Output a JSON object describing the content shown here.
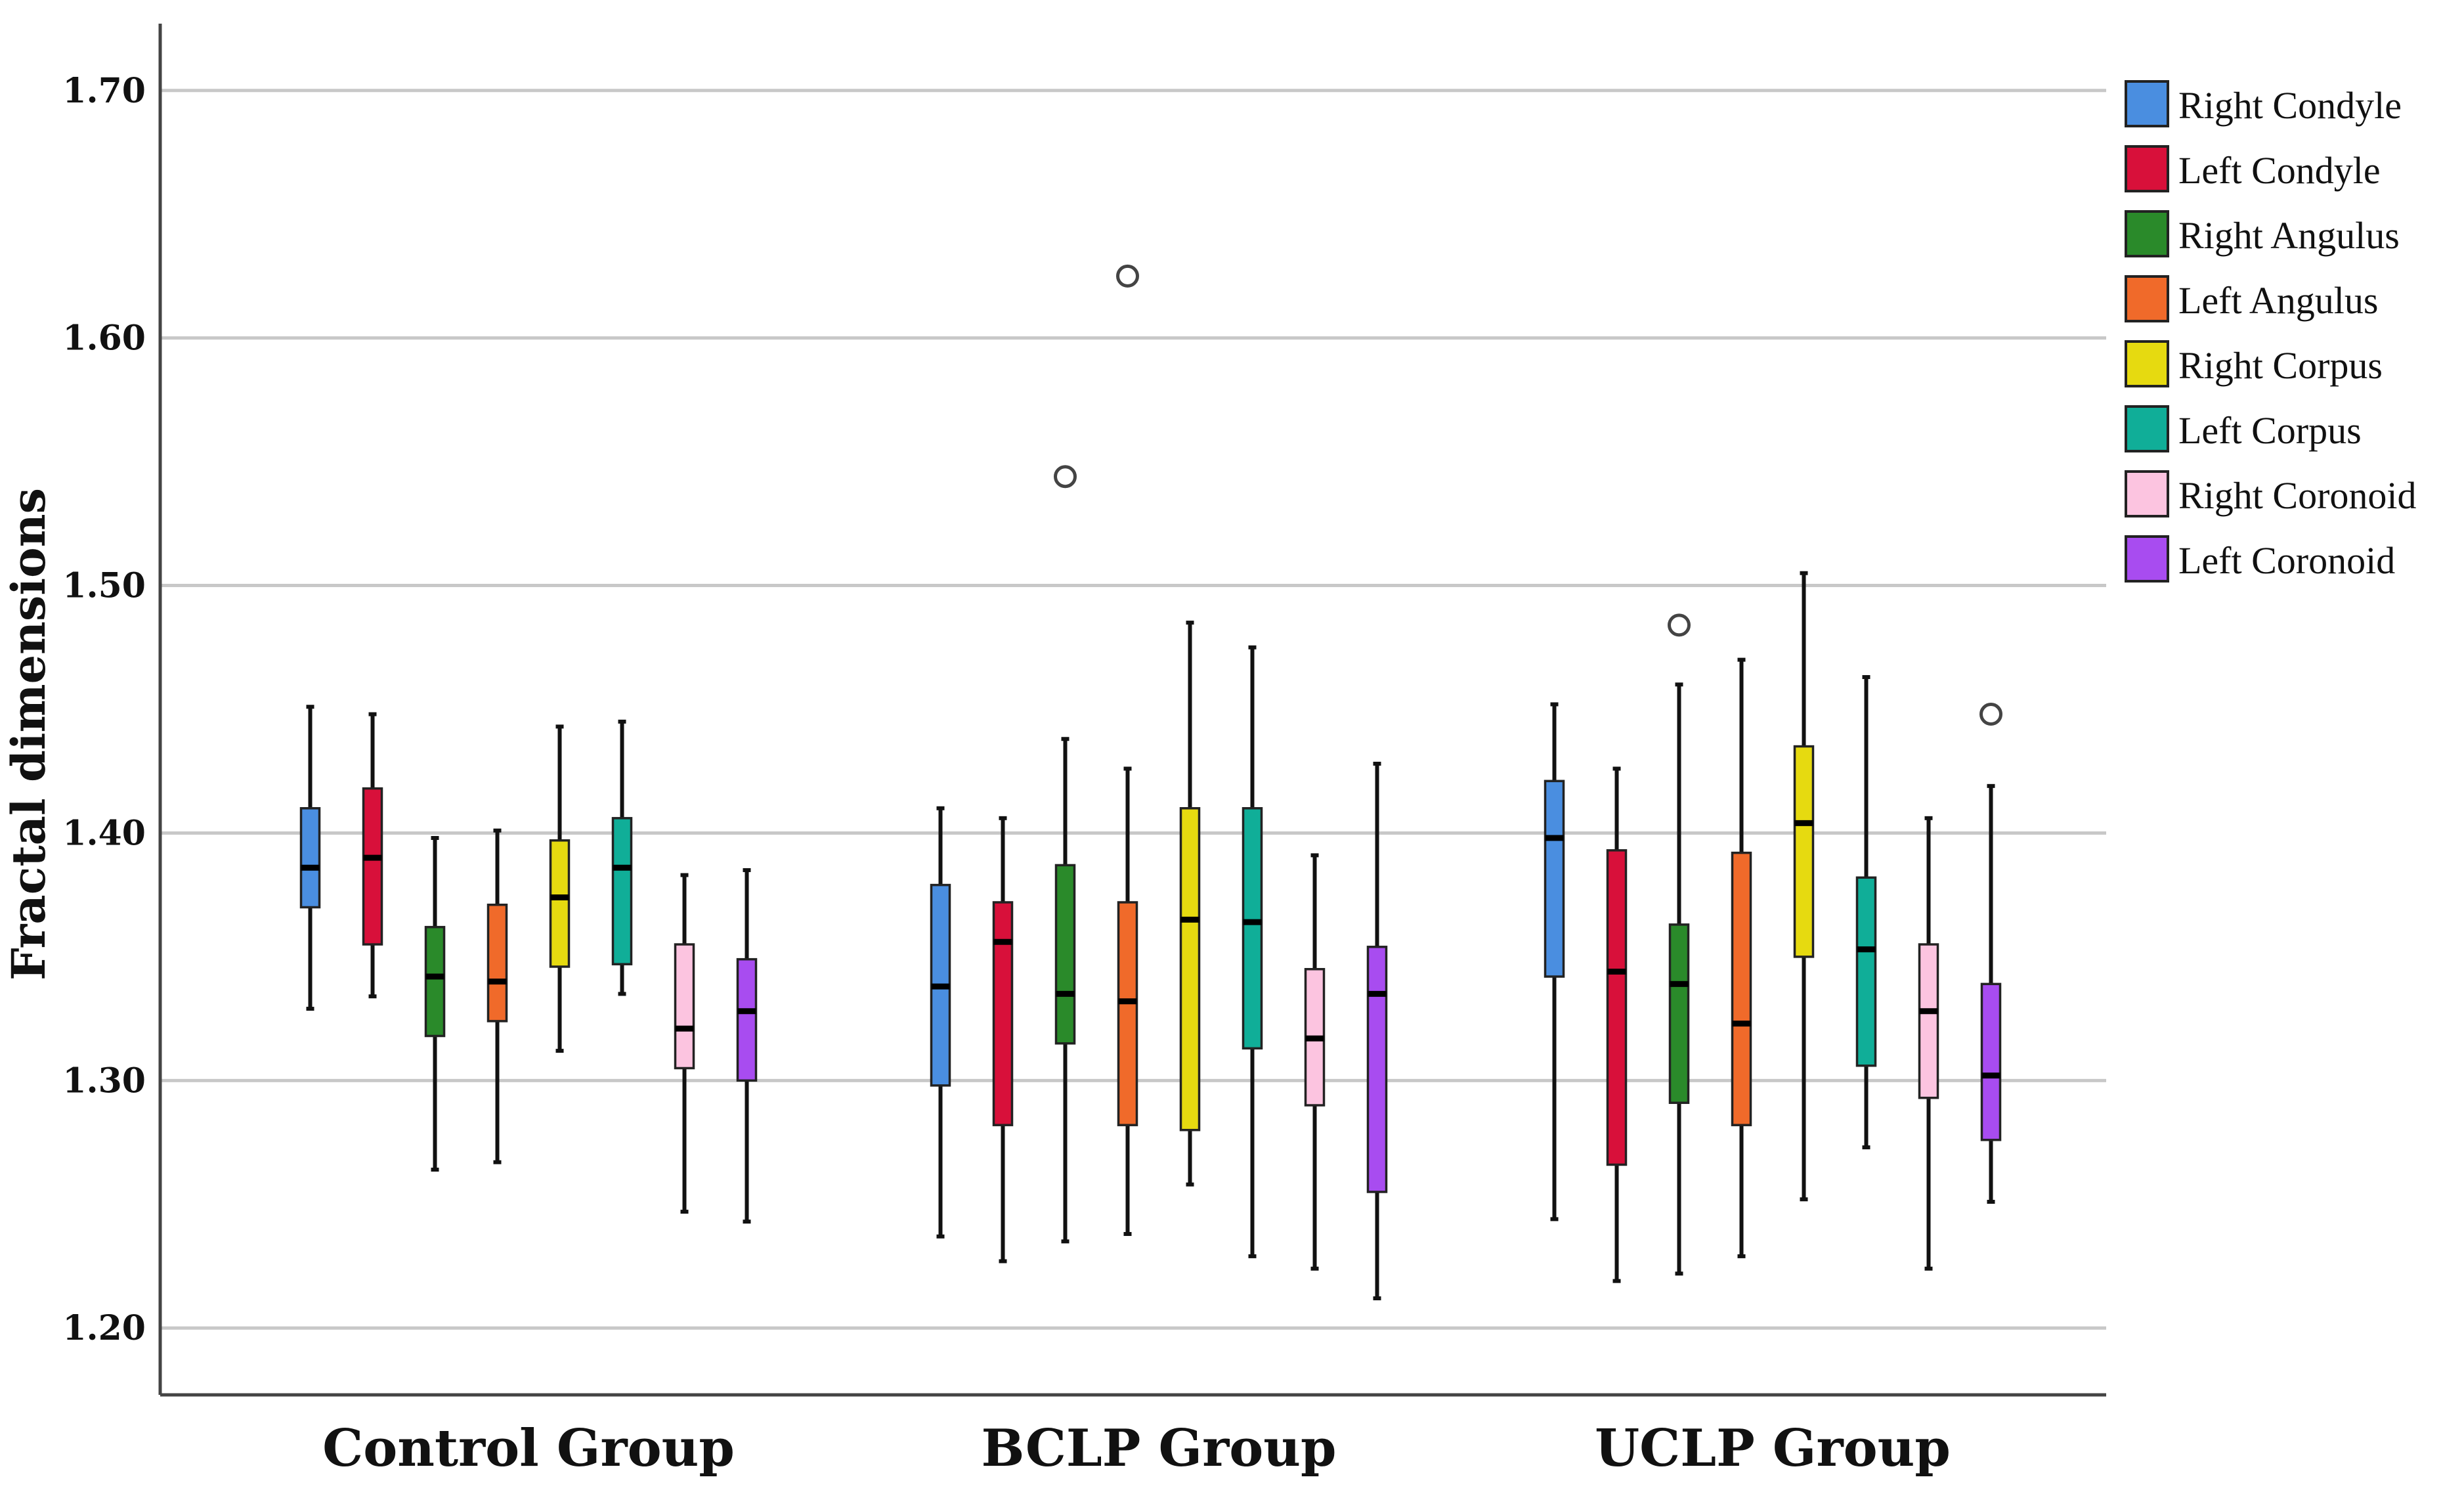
{
  "chart_data": {
    "type": "boxplot",
    "title": "",
    "xlabel": "",
    "ylabel": "Fractal dimensions",
    "ylim": [
      1.173,
      1.727
    ],
    "yticks": [
      1.2,
      1.3,
      1.4,
      1.5,
      1.6,
      1.7
    ],
    "ytick_labels": [
      "1.20",
      "1.30",
      "1.40",
      "1.50",
      "1.60",
      "1.70"
    ],
    "grid": true,
    "legend_position": "top-right",
    "categories": [
      "Control Group",
      "BCLP Group",
      "UCLP Group"
    ],
    "series": [
      {
        "name": "Right Condyle",
        "color": "#4a8ee0",
        "stats": [
          {
            "min": 1.329,
            "q1": 1.37,
            "median": 1.386,
            "q3": 1.41,
            "max": 1.451,
            "outliers": []
          },
          {
            "min": 1.237,
            "q1": 1.298,
            "median": 1.338,
            "q3": 1.379,
            "max": 1.41,
            "outliers": []
          },
          {
            "min": 1.244,
            "q1": 1.342,
            "median": 1.398,
            "q3": 1.421,
            "max": 1.452,
            "outliers": []
          }
        ]
      },
      {
        "name": "Left Condyle",
        "color": "#d8103a",
        "stats": [
          {
            "min": 1.334,
            "q1": 1.355,
            "median": 1.39,
            "q3": 1.418,
            "max": 1.448,
            "outliers": []
          },
          {
            "min": 1.227,
            "q1": 1.282,
            "median": 1.356,
            "q3": 1.372,
            "max": 1.406,
            "outliers": []
          },
          {
            "min": 1.219,
            "q1": 1.266,
            "median": 1.344,
            "q3": 1.393,
            "max": 1.426,
            "outliers": []
          }
        ]
      },
      {
        "name": "Right Angulus",
        "color": "#2a8a2a",
        "stats": [
          {
            "min": 1.264,
            "q1": 1.318,
            "median": 1.342,
            "q3": 1.362,
            "max": 1.398,
            "outliers": []
          },
          {
            "min": 1.235,
            "q1": 1.315,
            "median": 1.335,
            "q3": 1.387,
            "max": 1.438,
            "outliers": [
              1.544
            ]
          },
          {
            "min": 1.222,
            "q1": 1.291,
            "median": 1.339,
            "q3": 1.363,
            "max": 1.46,
            "outliers": [
              1.484
            ]
          }
        ]
      },
      {
        "name": "Left Angulus",
        "color": "#f06a2a",
        "stats": [
          {
            "min": 1.267,
            "q1": 1.324,
            "median": 1.34,
            "q3": 1.371,
            "max": 1.401,
            "outliers": []
          },
          {
            "min": 1.238,
            "q1": 1.282,
            "median": 1.332,
            "q3": 1.372,
            "max": 1.426,
            "outliers": [
              1.625
            ]
          },
          {
            "min": 1.229,
            "q1": 1.282,
            "median": 1.323,
            "q3": 1.392,
            "max": 1.47,
            "outliers": []
          }
        ]
      },
      {
        "name": "Right Corpus",
        "color": "#e6da10",
        "stats": [
          {
            "min": 1.312,
            "q1": 1.346,
            "median": 1.374,
            "q3": 1.397,
            "max": 1.443,
            "outliers": []
          },
          {
            "min": 1.258,
            "q1": 1.28,
            "median": 1.365,
            "q3": 1.41,
            "max": 1.485,
            "outliers": []
          },
          {
            "min": 1.252,
            "q1": 1.35,
            "median": 1.404,
            "q3": 1.435,
            "max": 1.505,
            "outliers": []
          }
        ]
      },
      {
        "name": "Left Corpus",
        "color": "#10ae98",
        "stats": [
          {
            "min": 1.335,
            "q1": 1.347,
            "median": 1.386,
            "q3": 1.406,
            "max": 1.445,
            "outliers": []
          },
          {
            "min": 1.229,
            "q1": 1.313,
            "median": 1.364,
            "q3": 1.41,
            "max": 1.475,
            "outliers": []
          },
          {
            "min": 1.273,
            "q1": 1.306,
            "median": 1.353,
            "q3": 1.382,
            "max": 1.463,
            "outliers": []
          }
        ]
      },
      {
        "name": "Right Coronoid",
        "color": "#fcc4e0",
        "stats": [
          {
            "min": 1.247,
            "q1": 1.305,
            "median": 1.321,
            "q3": 1.355,
            "max": 1.383,
            "outliers": []
          },
          {
            "min": 1.224,
            "q1": 1.29,
            "median": 1.317,
            "q3": 1.345,
            "max": 1.391,
            "outliers": []
          },
          {
            "min": 1.224,
            "q1": 1.293,
            "median": 1.328,
            "q3": 1.355,
            "max": 1.406,
            "outliers": []
          }
        ]
      },
      {
        "name": "Left Coronoid",
        "color": "#a84cf0",
        "stats": [
          {
            "min": 1.243,
            "q1": 1.3,
            "median": 1.328,
            "q3": 1.349,
            "max": 1.385,
            "outliers": []
          },
          {
            "min": 1.212,
            "q1": 1.255,
            "median": 1.335,
            "q3": 1.354,
            "max": 1.428,
            "outliers": []
          },
          {
            "min": 1.251,
            "q1": 1.276,
            "median": 1.302,
            "q3": 1.339,
            "max": 1.419,
            "outliers": [
              1.448
            ]
          }
        ]
      }
    ]
  }
}
